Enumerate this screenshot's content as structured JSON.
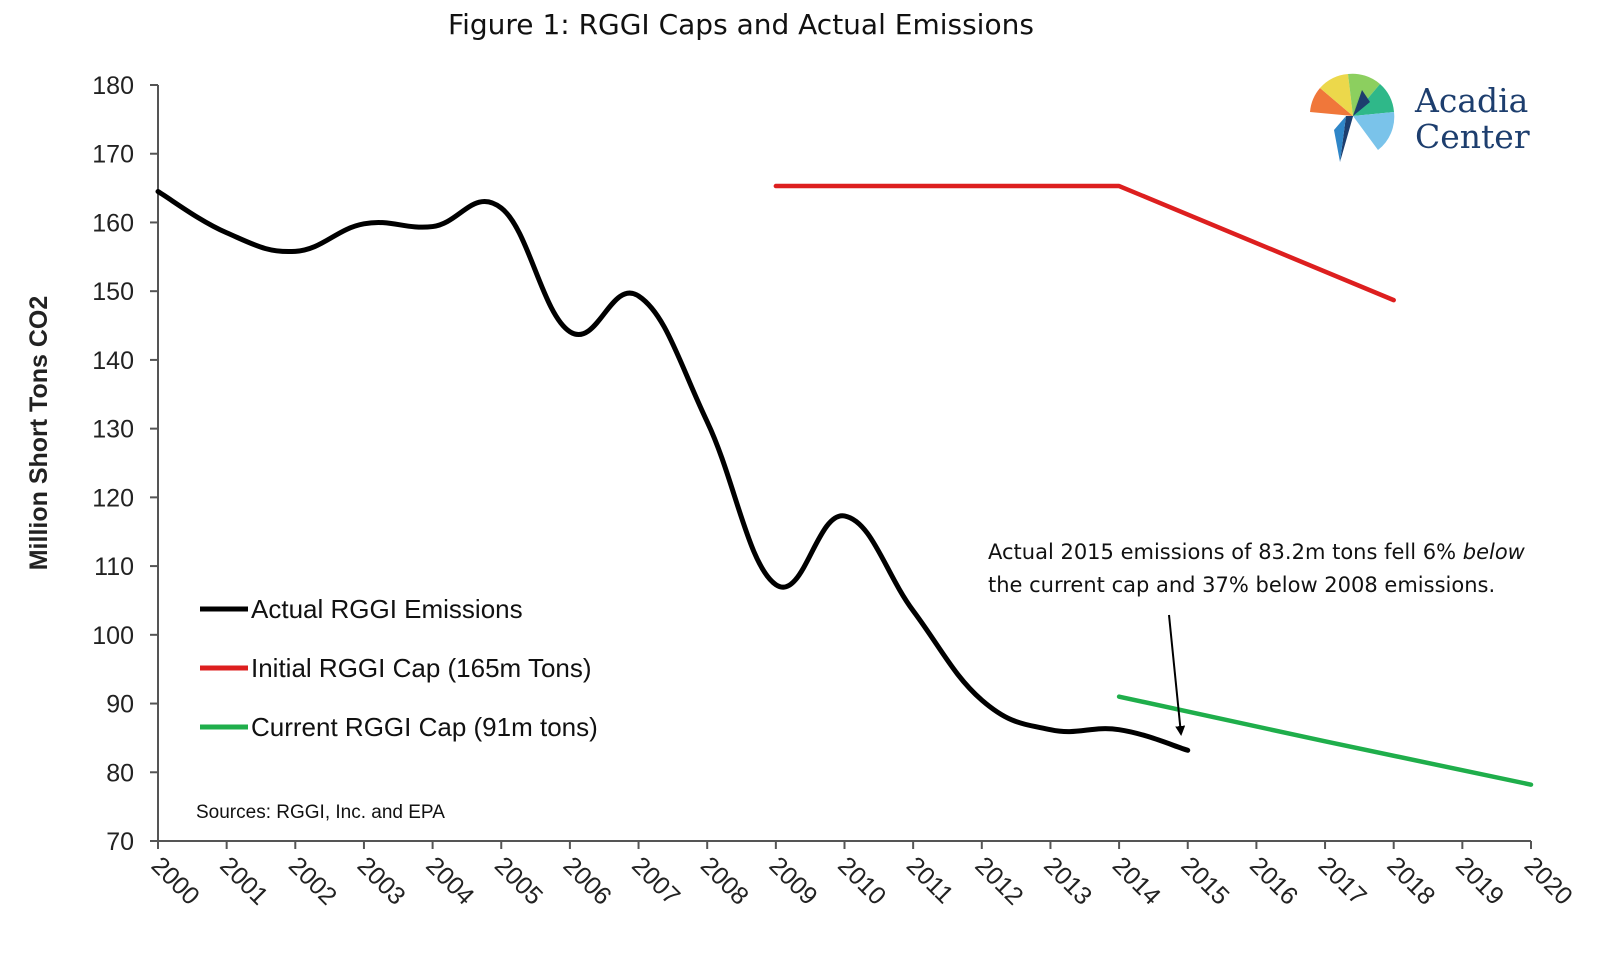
{
  "chart_data": {
    "type": "line",
    "title": "Figure 1: RGGI Caps and Actual Emissions",
    "ylabel": "Million Short Tons CO2",
    "xlabel": "",
    "ylim": [
      70,
      180
    ],
    "yticks": [
      70,
      80,
      90,
      100,
      110,
      120,
      130,
      140,
      150,
      160,
      170,
      180
    ],
    "categories": [
      "2000",
      "2001",
      "2002",
      "2003",
      "2004",
      "2005",
      "2006",
      "2007",
      "2008",
      "2009",
      "2010",
      "2011",
      "2012",
      "2013",
      "2014",
      "2015",
      "2016",
      "2017",
      "2018",
      "2019",
      "2020"
    ],
    "grid": false,
    "legend_position": "lower-left",
    "series": [
      {
        "name": "Actual RGGI Emissions",
        "color": "#000000",
        "x": [
          2000,
          2001,
          2002,
          2003,
          2004,
          2005,
          2006,
          2007,
          2008,
          2009,
          2010,
          2011,
          2012,
          2013,
          2014,
          2015
        ],
        "values": [
          164.5,
          158.5,
          155.8,
          159.8,
          159.4,
          162.1,
          144.1,
          149.3,
          131,
          107.3,
          117.3,
          103.5,
          90.5,
          86.2,
          86.2,
          83.2
        ],
        "smooth": true
      },
      {
        "name": "Initial RGGI Cap (165m Tons)",
        "color": "#dd1f1f",
        "x": [
          2009,
          2014,
          2018
        ],
        "values": [
          165.3,
          165.3,
          148.7
        ]
      },
      {
        "name": "Current RGGI Cap (91m tons)",
        "color": "#1fae4b",
        "x": [
          2014,
          2017,
          2020
        ],
        "values": [
          91.0,
          84.5,
          78.2
        ]
      }
    ],
    "annotation": {
      "line1": "Actual 2015 emissions of 83.2m tons fell 6% ",
      "line1_em": "below",
      "line2": "the current cap and 37% below 2008 emissions."
    },
    "source": "Sources: RGGI, Inc. and EPA"
  },
  "logo": {
    "line1": "Acadia",
    "line2": "Center"
  }
}
